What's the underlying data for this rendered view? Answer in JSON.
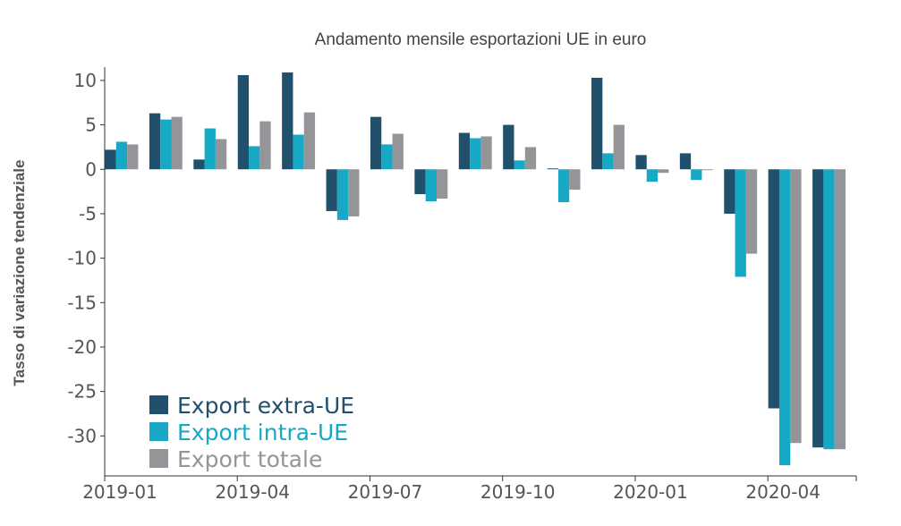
{
  "chart_data": {
    "type": "bar",
    "title": "Andamento mensile esportazioni UE in euro",
    "ylabel": "Tasso di variazione tendenziale",
    "xlabel": "",
    "ylim": [
      -34.5,
      11.5
    ],
    "yticks": [
      10,
      5,
      0,
      -5,
      -10,
      -15,
      -20,
      -25,
      -30
    ],
    "categories": [
      "2019-01",
      "2019-02",
      "2019-03",
      "2019-04",
      "2019-05",
      "2019-06",
      "2019-07",
      "2019-08",
      "2019-09",
      "2019-10",
      "2019-11",
      "2019-12",
      "2020-01",
      "2020-02",
      "2020-03",
      "2020-04",
      "2020-05"
    ],
    "x_tick_labels": [
      {
        "index": 0,
        "label": "2019-01"
      },
      {
        "index": 3,
        "label": "2019-04"
      },
      {
        "index": 6,
        "label": "2019-07"
      },
      {
        "index": 9,
        "label": "2019-10"
      },
      {
        "index": 12,
        "label": "2020-01"
      },
      {
        "index": 15,
        "label": "2020-04"
      }
    ],
    "series": [
      {
        "name": "Export extra-UE",
        "color": "#20506b",
        "values": [
          2.2,
          6.3,
          1.1,
          10.6,
          10.9,
          -4.7,
          5.9,
          -2.8,
          4.1,
          5.0,
          0.1,
          10.3,
          1.6,
          1.8,
          -5.0,
          -26.9,
          -31.3
        ]
      },
      {
        "name": "Export intra-UE",
        "color": "#17a8c6",
        "values": [
          3.1,
          5.6,
          4.6,
          2.6,
          3.9,
          -5.7,
          2.8,
          -3.6,
          3.5,
          1.0,
          -3.7,
          1.8,
          -1.4,
          -1.2,
          -12.1,
          -33.3,
          -31.5
        ]
      },
      {
        "name": "Export totale",
        "color": "#939598",
        "values": [
          2.8,
          5.9,
          3.4,
          5.4,
          6.4,
          -5.3,
          4.0,
          -3.3,
          3.7,
          2.5,
          -2.3,
          5.0,
          -0.4,
          -0.1,
          -9.5,
          -30.8,
          -31.5
        ]
      }
    ],
    "grid": false,
    "legend": {
      "placement": "bottom-left"
    }
  }
}
